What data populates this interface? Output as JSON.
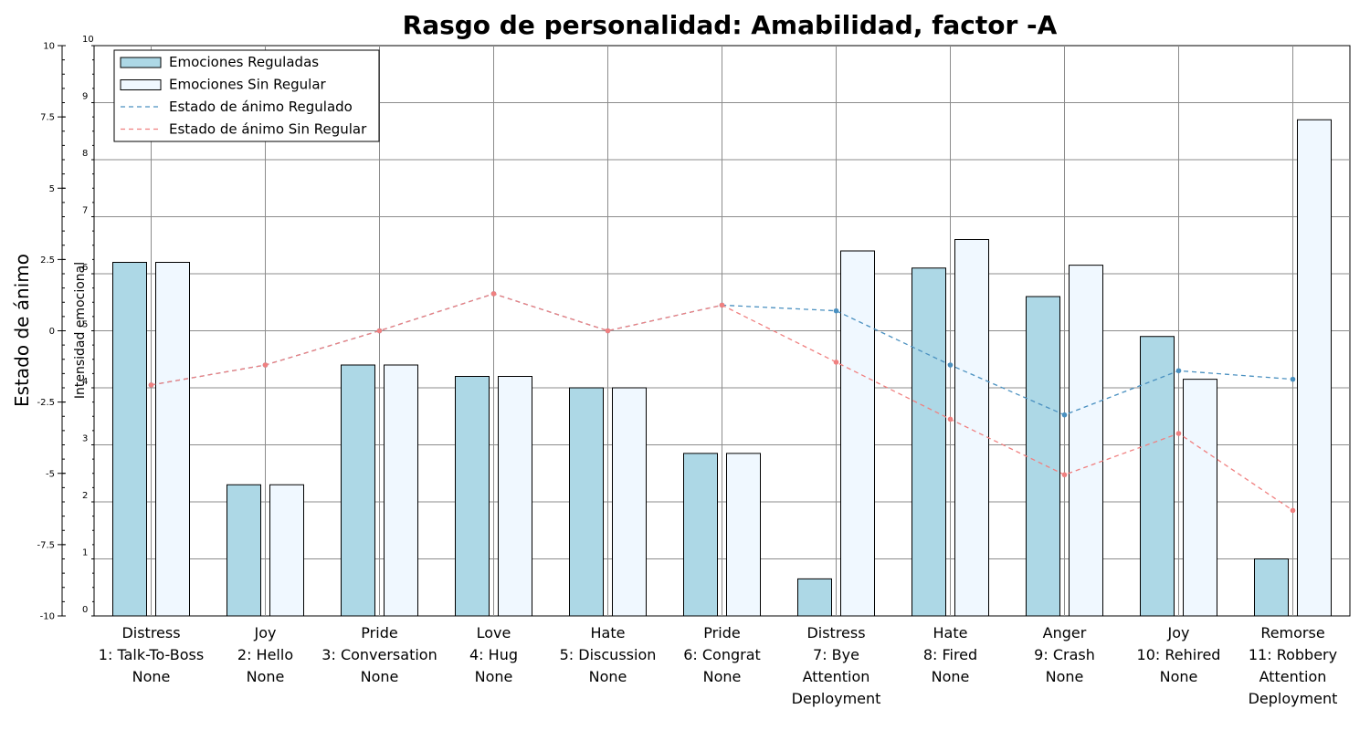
{
  "chart_data": {
    "type": "bar",
    "title": "Rasgo de personalidad: Amabilidad, factor -A",
    "ylabel_left": "Estado de ánimo",
    "ylabel_right": "Intensidad emocional",
    "left_axis": {
      "ylim": [
        -10,
        10
      ],
      "ticks": [
        "10",
        "7.5",
        "5",
        "2.5",
        "0",
        "-2.5",
        "-5",
        "-7.5",
        "-10"
      ]
    },
    "right_axis": {
      "ylim": [
        0,
        10
      ],
      "ticks": [
        "10",
        "9",
        "8",
        "7",
        "6",
        "5",
        "4",
        "3",
        "2",
        "1",
        "0"
      ]
    },
    "grid": true,
    "legend_position": "top-left",
    "categories": [
      [
        "Distress",
        "1: Talk-To-Boss",
        "None"
      ],
      [
        "Joy",
        "2: Hello",
        "None"
      ],
      [
        "Pride",
        "3: Conversation",
        "None"
      ],
      [
        "Love",
        "4: Hug",
        "None"
      ],
      [
        "Hate",
        "5: Discussion",
        "None"
      ],
      [
        "Pride",
        "6: Congrat",
        "None"
      ],
      [
        "Distress",
        "7: Bye",
        "Attention",
        "Deployment"
      ],
      [
        "Hate",
        "8: Fired",
        "None"
      ],
      [
        "Anger",
        "9: Crash",
        "None"
      ],
      [
        "Joy",
        "10: Rehired",
        "None"
      ],
      [
        "Remorse",
        "11: Robbery",
        "Attention",
        "Deployment"
      ]
    ],
    "series": [
      {
        "name": "Emociones Reguladas",
        "kind": "bar",
        "axis": "right",
        "color": "#add8e6",
        "values": [
          6.2,
          2.3,
          4.4,
          4.2,
          4.0,
          2.85,
          0.65,
          6.1,
          5.6,
          4.9,
          1.0
        ]
      },
      {
        "name": "Emociones Sin Regular",
        "kind": "bar",
        "axis": "right",
        "color": "#f0f8ff",
        "values": [
          6.2,
          2.3,
          4.4,
          4.2,
          4.0,
          2.85,
          6.4,
          6.6,
          6.15,
          4.15,
          8.7
        ]
      },
      {
        "name": "Estado de ánimo Regulado",
        "kind": "line",
        "axis": "left",
        "color": "#4a90c0",
        "values": [
          -1.9,
          -1.2,
          0.0,
          1.3,
          0.0,
          0.9,
          0.7,
          -1.2,
          -2.95,
          -1.4,
          -1.7
        ]
      },
      {
        "name": "Estado de ánimo Sin Regular",
        "kind": "line",
        "axis": "left",
        "color": "#f08080",
        "values": [
          -1.9,
          -1.2,
          0.0,
          1.3,
          0.0,
          0.9,
          -1.1,
          -3.1,
          -5.05,
          -3.6,
          -6.3
        ]
      }
    ]
  }
}
